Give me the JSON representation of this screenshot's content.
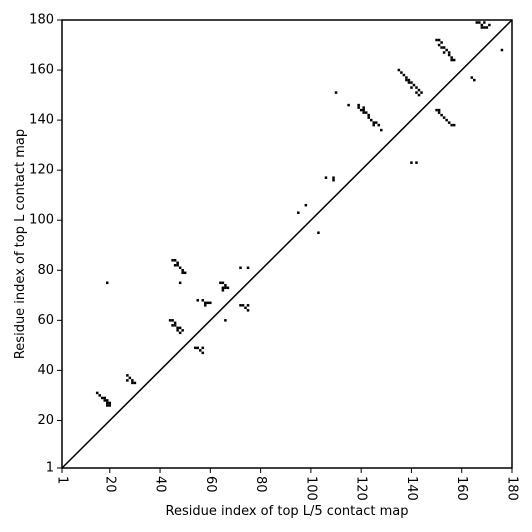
{
  "chart_data": {
    "type": "scatter",
    "x_label": "Residue index of top L/5 contact map",
    "y_label": "Residue index of top L contact map",
    "color": "#000000",
    "diagonal": true,
    "xlim": [
      1,
      180
    ],
    "ylim": [
      1,
      180
    ],
    "xticks": [
      1,
      20,
      40,
      60,
      80,
      100,
      120,
      140,
      160,
      180
    ],
    "yticks": [
      1,
      20,
      40,
      60,
      80,
      100,
      120,
      140,
      160,
      180
    ],
    "x": [
      19,
      15,
      16,
      17,
      18,
      19,
      18,
      19,
      20,
      19,
      20,
      27,
      28,
      27,
      29,
      30,
      29,
      45,
      46,
      47,
      46,
      47,
      48,
      49,
      49,
      50,
      48,
      44,
      45,
      46,
      45,
      46,
      47,
      48,
      47,
      48,
      49,
      55,
      57,
      58,
      59,
      60,
      58,
      54,
      55,
      56,
      57,
      57,
      64,
      65,
      66,
      65,
      66,
      67,
      65,
      66,
      72,
      75,
      72,
      73,
      74,
      75,
      75,
      95,
      98,
      103,
      106,
      109,
      109,
      110,
      115,
      119,
      119,
      121,
      120,
      121,
      122,
      121,
      123,
      123,
      124,
      125,
      125,
      126,
      127,
      128,
      135,
      136,
      137,
      138,
      138,
      139,
      140,
      139,
      141,
      142,
      140,
      143,
      142,
      144,
      143,
      140,
      142,
      150,
      151,
      152,
      151,
      152,
      153,
      154,
      153,
      155,
      155,
      156,
      157,
      156,
      150,
      151,
      151,
      152,
      153,
      154,
      155,
      156,
      157,
      166,
      167,
      168,
      169,
      170,
      168,
      171,
      169,
      164,
      165,
      176
    ],
    "y": [
      75,
      31,
      30,
      29,
      29,
      28,
      28,
      27,
      27,
      26,
      26,
      38,
      37,
      36,
      36,
      35,
      35,
      84,
      84,
      83,
      82,
      82,
      81,
      80,
      79,
      79,
      75,
      60,
      60,
      59,
      58,
      58,
      57,
      57,
      56,
      55,
      56,
      68,
      68,
      67,
      67,
      67,
      66,
      49,
      49,
      48,
      47,
      49,
      75,
      75,
      74,
      73,
      73,
      73,
      72,
      60,
      81,
      81,
      66,
      66,
      65,
      66,
      64,
      103,
      106,
      95,
      117,
      117,
      116,
      151,
      146,
      146,
      145,
      145,
      144,
      144,
      143,
      143,
      142,
      141,
      140,
      139,
      138,
      139,
      138,
      136,
      160,
      159,
      158,
      157,
      156,
      156,
      155,
      155,
      154,
      153,
      153,
      152,
      151,
      151,
      150,
      123,
      123,
      172,
      172,
      171,
      170,
      169,
      169,
      168,
      167,
      167,
      166,
      165,
      164,
      164,
      144,
      144,
      143,
      142,
      141,
      140,
      139,
      138,
      138,
      179,
      179,
      178,
      177,
      177,
      177,
      178,
      179,
      157,
      156,
      168
    ]
  }
}
